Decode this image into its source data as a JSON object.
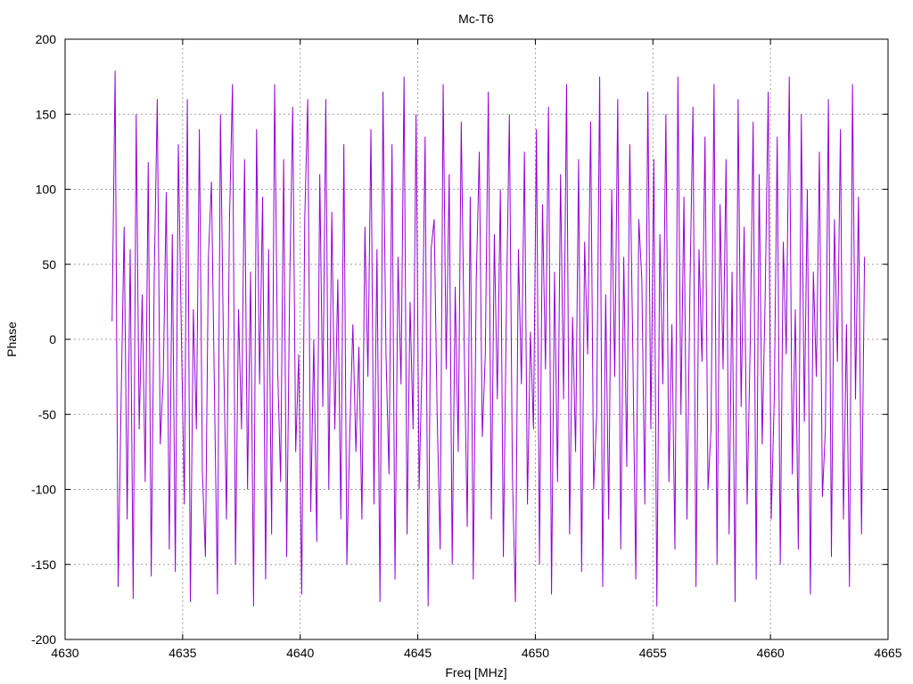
{
  "chart_data": {
    "type": "line",
    "title": "Mc-T6",
    "xlabel": "Freq [MHz]",
    "ylabel": "Phase",
    "xlim": [
      4630,
      4665
    ],
    "ylim": [
      -200,
      200
    ],
    "x_ticks": [
      "4630",
      "4635",
      "4640",
      "4645",
      "4650",
      "4655",
      "4660",
      "4665"
    ],
    "y_ticks": [
      "200",
      "150",
      "100",
      "50",
      "0",
      "-50",
      "-100",
      "-150",
      "-200"
    ],
    "grid": true,
    "legend": "none",
    "line_color": "#9400d3",
    "series": [
      {
        "x_start": 4632.0,
        "x_end": 4664.0,
        "values": [
          12,
          179,
          -165,
          -40,
          75,
          -120,
          60,
          -173,
          150,
          -60,
          30,
          -95,
          118,
          -158,
          42,
          160,
          -70,
          -25,
          98,
          -140,
          70,
          -155,
          130,
          5,
          -110,
          160,
          -175,
          20,
          -60,
          140,
          -88,
          -145,
          55,
          105,
          -35,
          -170,
          150,
          -5,
          -120,
          80,
          170,
          -150,
          20,
          -60,
          120,
          -100,
          45,
          -178,
          140,
          -30,
          95,
          -160,
          60,
          -130,
          170,
          -20,
          -95,
          120,
          -145,
          35,
          155,
          -75,
          -10,
          -170,
          80,
          160,
          -115,
          0,
          -135,
          110,
          -45,
          160,
          -100,
          85,
          -60,
          40,
          -120,
          130,
          -150,
          -60,
          10,
          -75,
          -5,
          -120,
          75,
          -25,
          140,
          -110,
          60,
          -175,
          165,
          -10,
          -90,
          130,
          -160,
          55,
          -30,
          175,
          -130,
          25,
          -60,
          150,
          -100,
          -15,
          135,
          -178,
          60,
          80,
          -50,
          -140,
          170,
          -20,
          110,
          -150,
          35,
          -75,
          145,
          -5,
          -125,
          95,
          -160,
          40,
          125,
          -65,
          -10,
          165,
          -120,
          70,
          -40,
          100,
          -145,
          20,
          150,
          -90,
          -175,
          60,
          -30,
          125,
          -110,
          5,
          -60,
          140,
          -150,
          90,
          -20,
          155,
          -170,
          45,
          -95,
          110,
          -40,
          170,
          -130,
          15,
          -75,
          120,
          -155,
          65,
          -10,
          145,
          -100,
          -50,
          175,
          -165,
          30,
          -120,
          100,
          -25,
          160,
          -140,
          55,
          -85,
          130,
          -5,
          -160,
          80,
          40,
          -110,
          165,
          -60,
          120,
          -178,
          70,
          -30,
          150,
          -95,
          10,
          -140,
          175,
          -50,
          95,
          -120,
          35,
          155,
          -165,
          60,
          -15,
          135,
          -100,
          -60,
          170,
          -150,
          90,
          -20,
          120,
          -130,
          45,
          -175,
          160,
          -45,
          75,
          -110,
          -5,
          145,
          -160,
          110,
          -70,
          30,
          165,
          -120,
          -40,
          135,
          -150,
          65,
          -10,
          175,
          -90,
          20,
          -140,
          150,
          -55,
          100,
          -170,
          45,
          -25,
          125,
          -105,
          -60,
          160,
          -145,
          80,
          -15,
          140,
          -120,
          10,
          -165,
          170,
          -40,
          95,
          -130,
          55
        ]
      }
    ]
  }
}
